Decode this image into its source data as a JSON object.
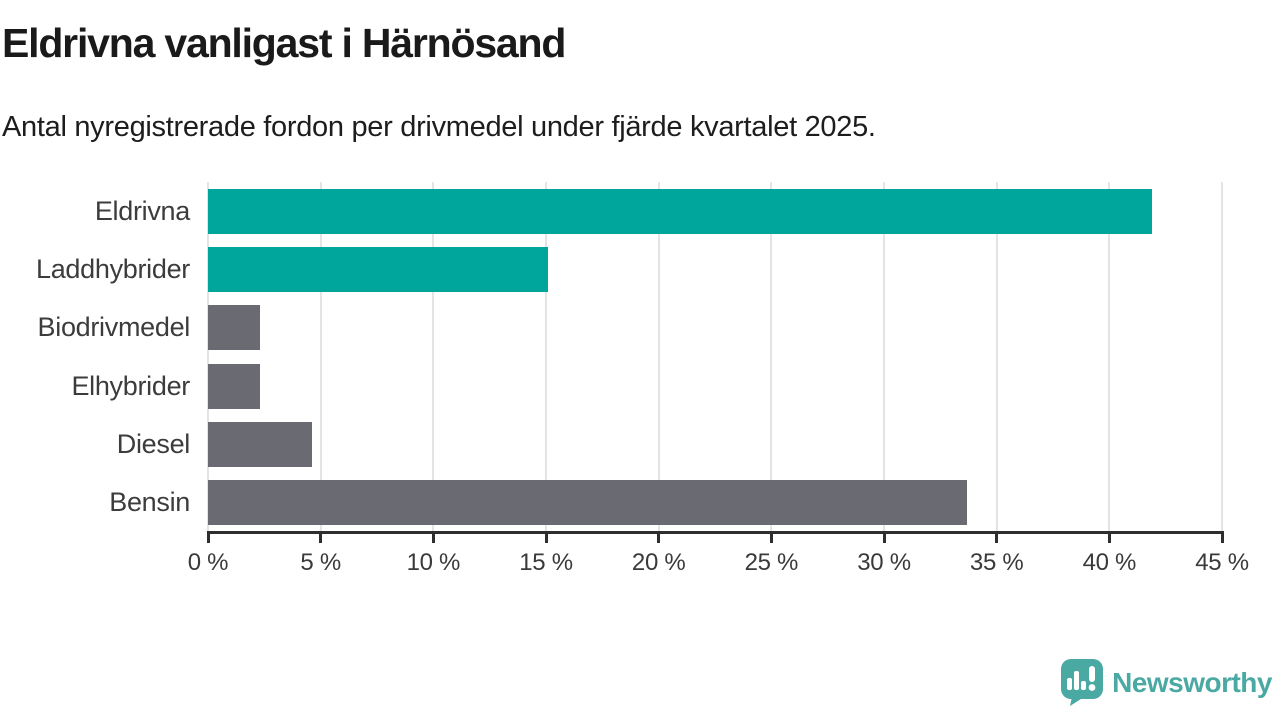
{
  "header": {
    "title": "Eldrivna vanligast i Härnösand",
    "subtitle": "Antal nyregistrerade fordon per drivmedel under fjärde kvartalet 2025."
  },
  "chart_data": {
    "type": "bar",
    "orientation": "horizontal",
    "title": "Eldrivna vanligast i Härnösand",
    "subtitle": "Antal nyregistrerade fordon per drivmedel under fjärde kvartalet 2025.",
    "categories": [
      "Eldrivna",
      "Laddhybrider",
      "Biodrivmedel",
      "Elhybrider",
      "Diesel",
      "Bensin"
    ],
    "values": [
      41.9,
      15.1,
      2.3,
      2.3,
      4.6,
      33.7
    ],
    "unit": "%",
    "bar_colors": [
      "#00a69b",
      "#00a69b",
      "#6a6a72",
      "#6a6a72",
      "#6a6a72",
      "#6a6a72"
    ],
    "xlim": [
      0,
      45
    ],
    "xticks": [
      0,
      5,
      10,
      15,
      20,
      25,
      30,
      35,
      40,
      45
    ],
    "xtick_labels": [
      "0 %",
      "5 %",
      "10 %",
      "15 %",
      "20 %",
      "25 %",
      "30 %",
      "35 %",
      "40 %",
      "45 %"
    ],
    "grid": true,
    "legend": "none"
  },
  "colors": {
    "accent_teal": "#00a69b",
    "neutral_gray": "#6a6a72",
    "gridline": "#e4e4e4",
    "axis": "#2e2e2e",
    "text_dark": "#1a1a1a",
    "text_medium": "#3c3c3c",
    "logo_teal": "#4aa9a2",
    "background": "#ffffff"
  },
  "branding": {
    "logo_text": "Newsworthy",
    "logo_icon": "newsworthy-bar-chart-bubble-icon"
  }
}
